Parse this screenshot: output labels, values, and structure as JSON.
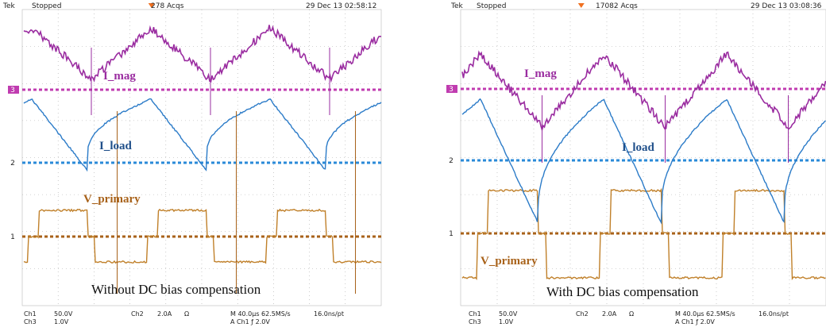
{
  "panels": [
    {
      "header": {
        "tek": "Tek",
        "status": "Stopped",
        "acqs": "278 Acqs",
        "date": "29 Dec 13 02:58:12"
      },
      "markers": [
        "3",
        "2",
        "1"
      ],
      "labels": {
        "i_mag": "I_mag",
        "i_load": "I_load",
        "v_primary": "V_primary"
      },
      "caption": "Without DC bias compensation",
      "footer": {
        "ch1": "Ch1",
        "ch1_scale": "50.0V",
        "ch3": "Ch3",
        "ch3_scale": "1.0V",
        "ch2": "Ch2",
        "ch2_scale": "2.0A",
        "ohm": "Ω",
        "timebase": "M 40.0μs 62.5MS/s",
        "resolution": "16.0ns/pt",
        "trigger": "A Ch1 ƒ 2.0V"
      }
    },
    {
      "header": {
        "tek": "Tek",
        "status": "Stopped",
        "acqs": "17082 Acqs",
        "date": "29 Dec 13 03:08:36"
      },
      "markers": [
        "3",
        "2",
        "1"
      ],
      "labels": {
        "i_mag": "I_mag",
        "i_load": "I_load",
        "v_primary": "V_primary"
      },
      "caption": "With DC bias compensation",
      "footer": {
        "ch1": "Ch1",
        "ch1_scale": "50.0V",
        "ch3": "Ch3",
        "ch3_scale": "1.0V",
        "ch2": "Ch2",
        "ch2_scale": "2.0A",
        "ohm": "Ω",
        "timebase": "M 40.0μs 62.5MS/s",
        "resolution": "16.0ns/pt",
        "trigger": "A Ch1 ƒ 2.0V"
      }
    }
  ]
}
